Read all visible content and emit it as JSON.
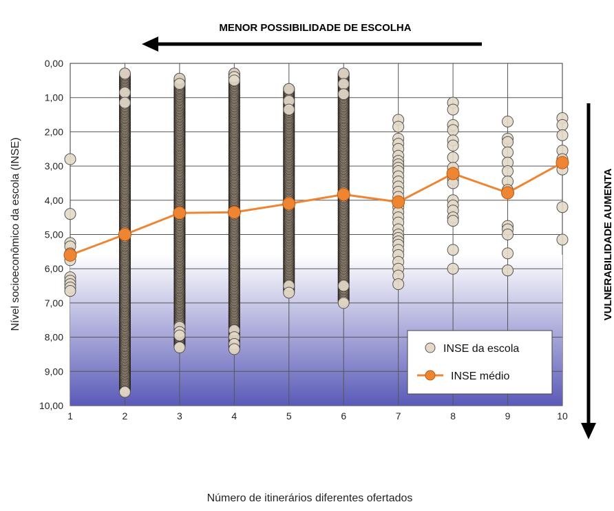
{
  "chart_data": {
    "type": "scatter",
    "xlabel": "Número de itinerários diferentes ofertados",
    "ylabel": "Nível socioeconômico da escola (INSE)",
    "x_ticks": [
      "1",
      "2",
      "3",
      "4",
      "5",
      "6",
      "7",
      "8",
      "9",
      "10"
    ],
    "y_ticks": [
      "0,00",
      "1,00",
      "2,00",
      "3,00",
      "4,00",
      "5,00",
      "6,00",
      "7,00",
      "8,00",
      "9,00",
      "10,00"
    ],
    "xlim": [
      1,
      10
    ],
    "ylim": [
      0,
      10
    ],
    "y_inverted": true,
    "grid": true,
    "legend_placement": "bottom-right",
    "top_annotation": "MENOR POSSIBILIDADE DE ESCOLHA",
    "right_annotation": "VULNERABILIDADE AUMENTA",
    "series": [
      {
        "name": "INSE da escola",
        "marker": "circle",
        "color": "#d9cbb8",
        "points_by_x": [
          {
            "x": 1,
            "y": [
              2.8,
              4.4,
              5.25,
              5.35,
              5.55,
              5.75,
              6.25,
              6.35,
              6.45,
              6.55,
              6.65
            ]
          },
          {
            "x": 2,
            "y_range": [
              0.3,
              9.6
            ],
            "y_sparse": [
              0.3,
              0.85,
              1.15,
              9.6
            ]
          },
          {
            "x": 3,
            "y_range": [
              0.45,
              8.3
            ],
            "y_sparse": [
              0.45,
              0.6,
              7.7,
              7.85,
              7.95,
              8.3
            ]
          },
          {
            "x": 4,
            "y_range": [
              0.3,
              8.35
            ],
            "y_sparse": [
              0.3,
              0.4,
              0.5,
              7.8,
              8.0,
              8.2,
              8.35
            ]
          },
          {
            "x": 5,
            "y_range": [
              0.75,
              6.7
            ],
            "y_sparse": [
              0.75,
              1.1,
              1.35,
              6.5,
              6.7
            ]
          },
          {
            "x": 6,
            "y_range": [
              0.3,
              7.0
            ],
            "y_sparse": [
              0.3,
              0.6,
              0.9,
              6.5,
              7.0
            ]
          },
          {
            "x": 7,
            "y": [
              1.65,
              1.85,
              2.2,
              2.35,
              2.5,
              2.7,
              2.85,
              2.95,
              3.05,
              3.15,
              3.3,
              3.45,
              3.6,
              3.75,
              3.9,
              4.05,
              4.2,
              4.35,
              4.5,
              4.65,
              4.85,
              5.0,
              5.1,
              5.2,
              5.3,
              5.45,
              5.6,
              5.8,
              6.0,
              6.2,
              6.45
            ]
          },
          {
            "x": 8,
            "y": [
              1.15,
              1.35,
              1.8,
              1.95,
              2.25,
              2.4,
              2.75,
              3.05,
              3.3,
              3.4,
              3.5,
              4.0,
              4.15,
              4.3,
              4.5,
              4.6,
              5.45,
              6.0
            ]
          },
          {
            "x": 9,
            "y": [
              1.7,
              2.2,
              2.3,
              2.6,
              2.9,
              3.15,
              3.45,
              3.7,
              4.75,
              4.85,
              5.0,
              5.55,
              6.05
            ]
          },
          {
            "x": 10,
            "y": [
              1.6,
              1.8,
              2.1,
              2.55,
              2.8,
              3.1,
              4.2,
              5.15
            ]
          }
        ]
      },
      {
        "name": "INSE médio",
        "marker": "circle-line",
        "color": "#ee8533",
        "x": [
          1,
          2,
          3,
          4,
          5,
          6,
          7,
          8,
          9,
          10
        ],
        "y": [
          5.6,
          5.0,
          4.37,
          4.35,
          4.1,
          3.83,
          4.05,
          3.22,
          3.78,
          2.9
        ]
      }
    ]
  }
}
